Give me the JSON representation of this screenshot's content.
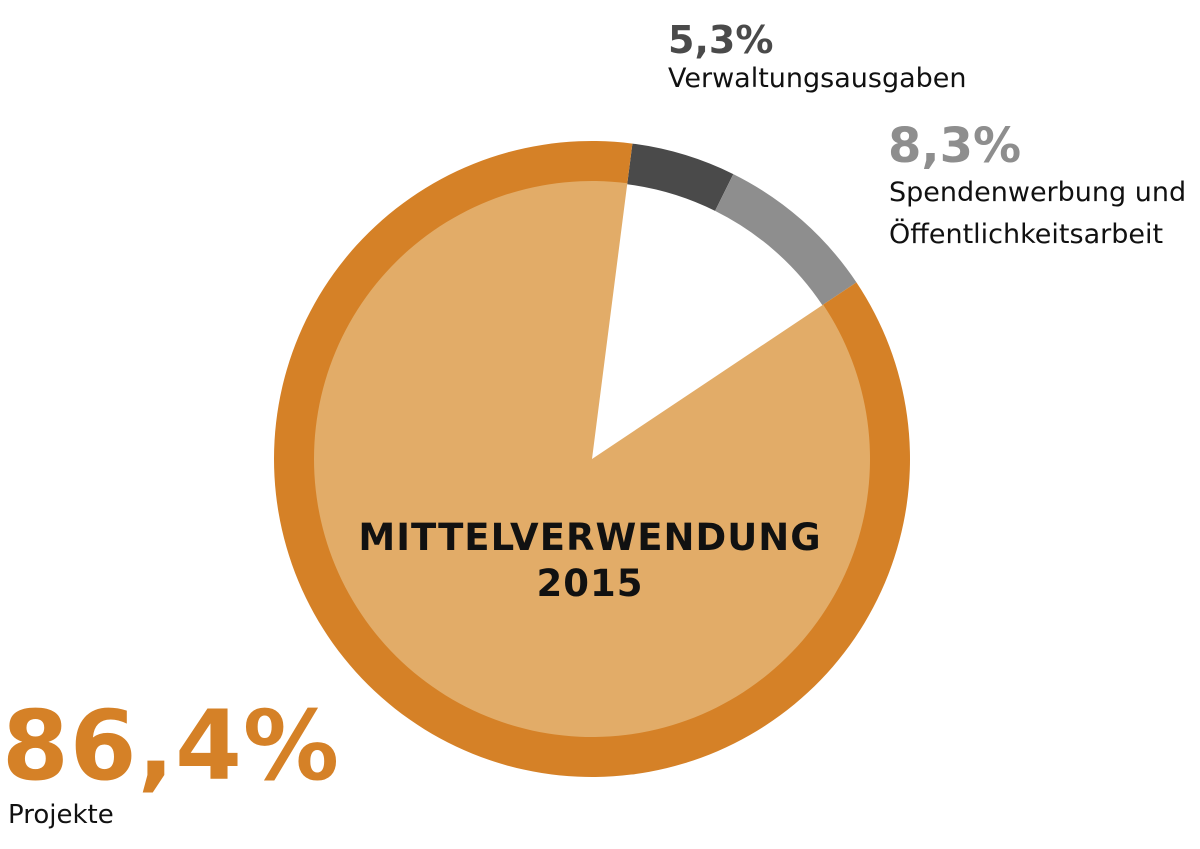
{
  "colors": {
    "projects_ring": "#D58127",
    "projects_fill": "#E2AC68",
    "admin": "#4A4A4A",
    "fundraising": "#8E8E8E",
    "title_text": "#111111",
    "label_text": "#111111"
  },
  "chart_data": {
    "type": "pie",
    "title_lines": [
      "MITTELVERWENDUNG",
      "2015"
    ],
    "slices": [
      {
        "name": "Verwaltungsausgaben",
        "value": 5.3,
        "value_label": "5,3%",
        "label_lines": [
          "Verwaltungsausgaben"
        ],
        "color": "#4A4A4A"
      },
      {
        "name": "Spendenwerbung und Öffentlichkeitsarbeit",
        "value": 8.3,
        "value_label": "8,3%",
        "label_lines": [
          "Spendenwerbung und",
          "Öffentlichkeitsarbeit"
        ],
        "color": "#8E8E8E"
      },
      {
        "name": "Projekte",
        "value": 86.4,
        "value_label": "86,4%",
        "label_lines": [
          "Projekte"
        ],
        "color": "#D58127"
      }
    ]
  }
}
